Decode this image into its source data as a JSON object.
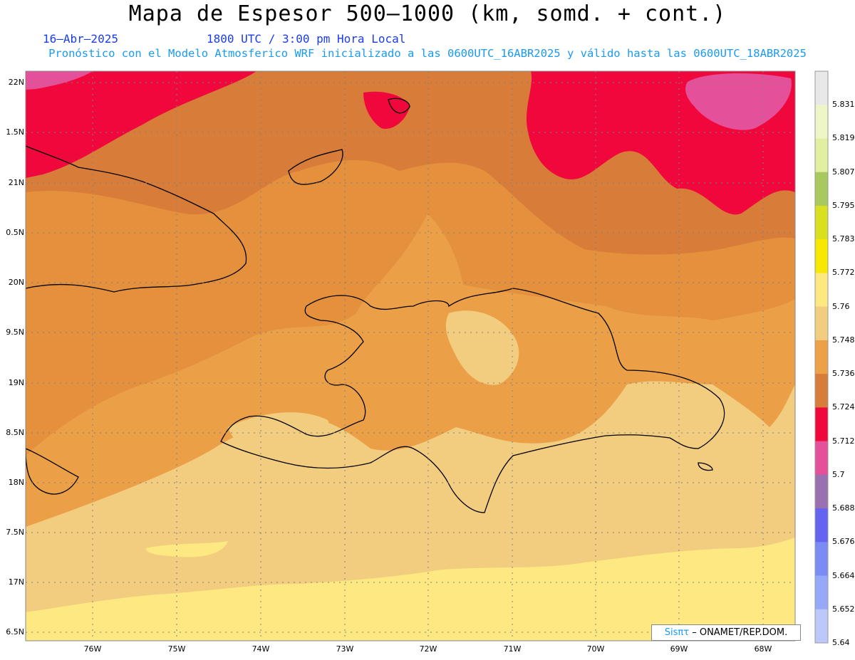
{
  "header": {
    "title": "Mapa de Espesor 500—1000 (km, somd. + cont.)",
    "date": "16—Abr—2025",
    "time": "1800 UTC / 3:00 pm Hora Local",
    "forecast": "Pronóstico con el Modelo Atmosferico WRF inicializado a las 0600UTC_16ABR2025 y válido hasta las  0600UTC_18ABR2025"
  },
  "lat_labels": [
    "22N",
    "1.5N",
    "21N",
    "0.5N",
    "20N",
    "9.5N",
    "19N",
    "8.5N",
    "18N",
    "7.5N",
    "17N",
    "6.5N"
  ],
  "lon_labels": [
    "76W",
    "75W",
    "74W",
    "73W",
    "72W",
    "71W",
    "70W",
    "69W",
    "68W"
  ],
  "colorbar": {
    "labels": [
      "5.831",
      "5.819",
      "5.807",
      "5.795",
      "5.783",
      "5.772",
      "5.76",
      "5.748",
      "5.736",
      "5.724",
      "5.712",
      "5.7",
      "5.688",
      "5.676",
      "5.664",
      "5.652",
      "5.64"
    ],
    "colors": [
      "#e8e8e8",
      "#f0f5c8",
      "#e0f0a0",
      "#a8c860",
      "#d8e020",
      "#f8e800",
      "#fde882",
      "#f2cd80",
      "#ec a048",
      "#d87c3a",
      "#f0083c",
      "#e4509a",
      "#9a70b0",
      "#6464f0",
      "#7a8cf4",
      "#96a8f8",
      "#bcc8fa"
    ]
  },
  "credit": {
    "brand": "Sisπτ",
    "text": "– ONAMET/REP.DOM."
  },
  "map_colors": {
    "deep_red": "#f0083c",
    "pink": "#e4509a",
    "dark_orange": "#d87c3a",
    "orange": "#e4903c",
    "light_orange": "#ec a048",
    "tan": "#f2cd80",
    "yellow": "#fde882"
  }
}
